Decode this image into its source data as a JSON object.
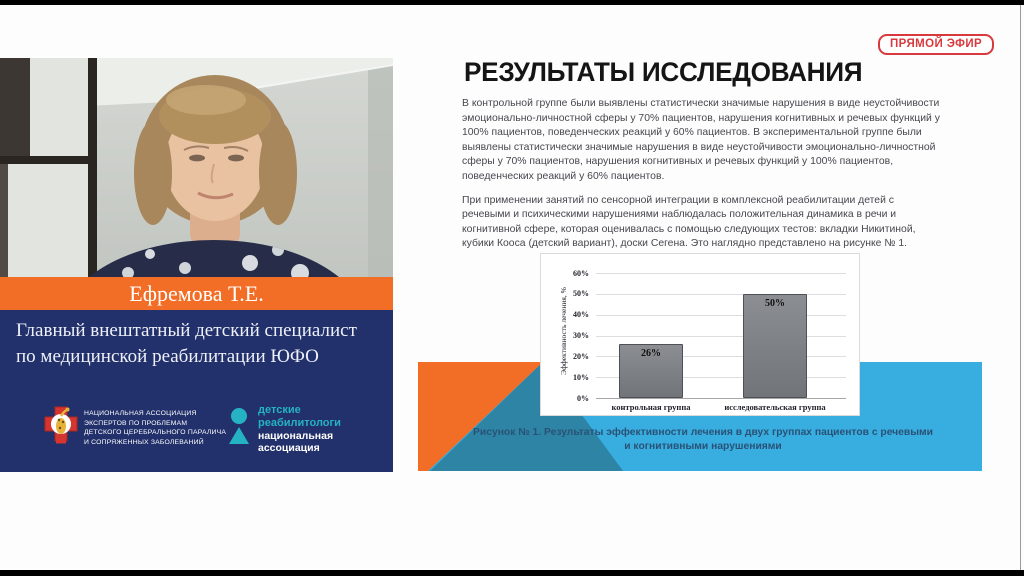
{
  "player": {
    "live_badge": "ПРЯМОЙ ЭФИР"
  },
  "speaker": {
    "name": "Ефремова Т.Е.",
    "title_line1": "Главный внештатный детский специалист",
    "title_line2": "по медицинской реабилитации ЮФО",
    "org1_lines": [
      "НАЦИОНАЛЬНАЯ АССОЦИАЦИЯ",
      "ЭКСПЕРТОВ ПО ПРОБЛЕМАМ",
      "ДЕТСКОГО ЦЕРЕБРАЛЬНОГО ПАРАЛИЧА",
      "И СОПРЯЖЕННЫХ ЗАБОЛЕВАНИЙ"
    ],
    "org2_teal_line1": "детские",
    "org2_teal_line2": "реабилитологи",
    "org2_white_line1": "национальная",
    "org2_white_line2": "ассоциация"
  },
  "slide": {
    "title": "РЕЗУЛЬТАТЫ ИССЛЕДОВАНИЯ",
    "paragraph1": "В контрольной группе были выявлены статистически значимые нарушения в виде неустойчивости эмоционально-личностной сферы у 70% пациентов, нарушения когнитивных и речевых функций у 100% пациентов, поведенческих реакций у 60% пациентов. В экспериментальной группе были выявлены статистически значимые нарушения в виде неустойчивости эмоционально-личностной сферы у 70% пациентов, нарушения когнитивных и речевых функций у 100% пациентов, поведенческих реакций у 60% пациентов.",
    "paragraph2": "При применении занятий по сенсорной интеграции в комплексной реабилитации детей с речевыми и психическими нарушениями наблюдалась положительная динамика в речи и когнитивной сфере, которая оценивалась с помощью следующих тестов: вкладки Никитиной, кубики Кооса (детский вариант), доски Сегена. Это наглядно представлено на рисунке № 1.",
    "caption_line1": "Рисунок № 1. Результаты эффективности лечения в двух группах пациентов с  речевыми",
    "caption_line2": "и когнитивными нарушениями"
  },
  "chart_data": {
    "type": "bar",
    "categories": [
      "контрольная группа",
      "исследовательская группа"
    ],
    "values": [
      26,
      50
    ],
    "bar_labels": [
      "26%",
      "50%"
    ],
    "title": "",
    "xlabel": "",
    "ylabel": "Эффективность лечения, %",
    "ylim": [
      0,
      60
    ],
    "ytick_step": 10,
    "ytick_labels": [
      "0%",
      "10%",
      "20%",
      "30%",
      "40%",
      "50%",
      "60%"
    ],
    "grid": true,
    "legend": false,
    "bar_color": "#7f8287",
    "bar_border": "#4e5056"
  },
  "colors": {
    "accent_orange": "#f26d26",
    "brand_navy": "#22306b",
    "band_blue": "#38ade0",
    "band_teal": "#2d84a5",
    "live_red": "#d8393d",
    "logo_teal": "#25b2c4"
  }
}
